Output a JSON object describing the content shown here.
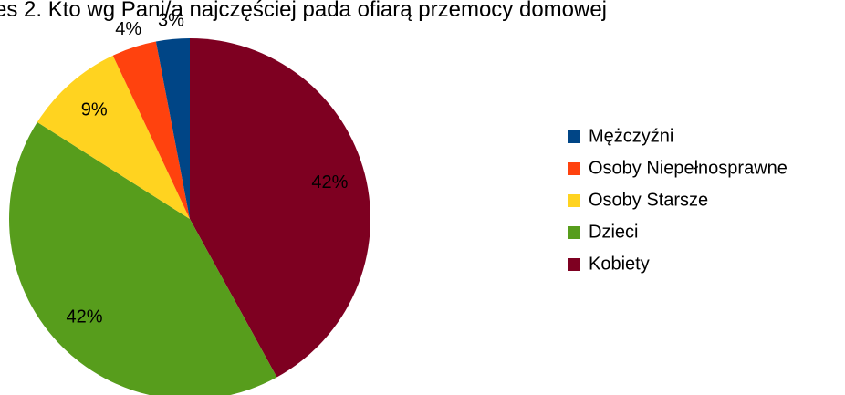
{
  "chart_data": {
    "type": "pie",
    "title": "es 2. Kto wg Pani/a najczęściej pada ofiarą przemocy domowej",
    "categories": [
      "Kobiety",
      "Dzieci",
      "Osoby Starsze",
      "Osoby Niepełnosprawne",
      "Mężczyźni"
    ],
    "values": [
      42,
      42,
      9,
      4,
      3
    ],
    "value_labels": [
      "42%",
      "42%",
      "9%",
      "4%",
      "3%"
    ],
    "colors": [
      "#7e0021",
      "#579d1c",
      "#ffd320",
      "#ff420e",
      "#004586"
    ],
    "legend": "right"
  }
}
